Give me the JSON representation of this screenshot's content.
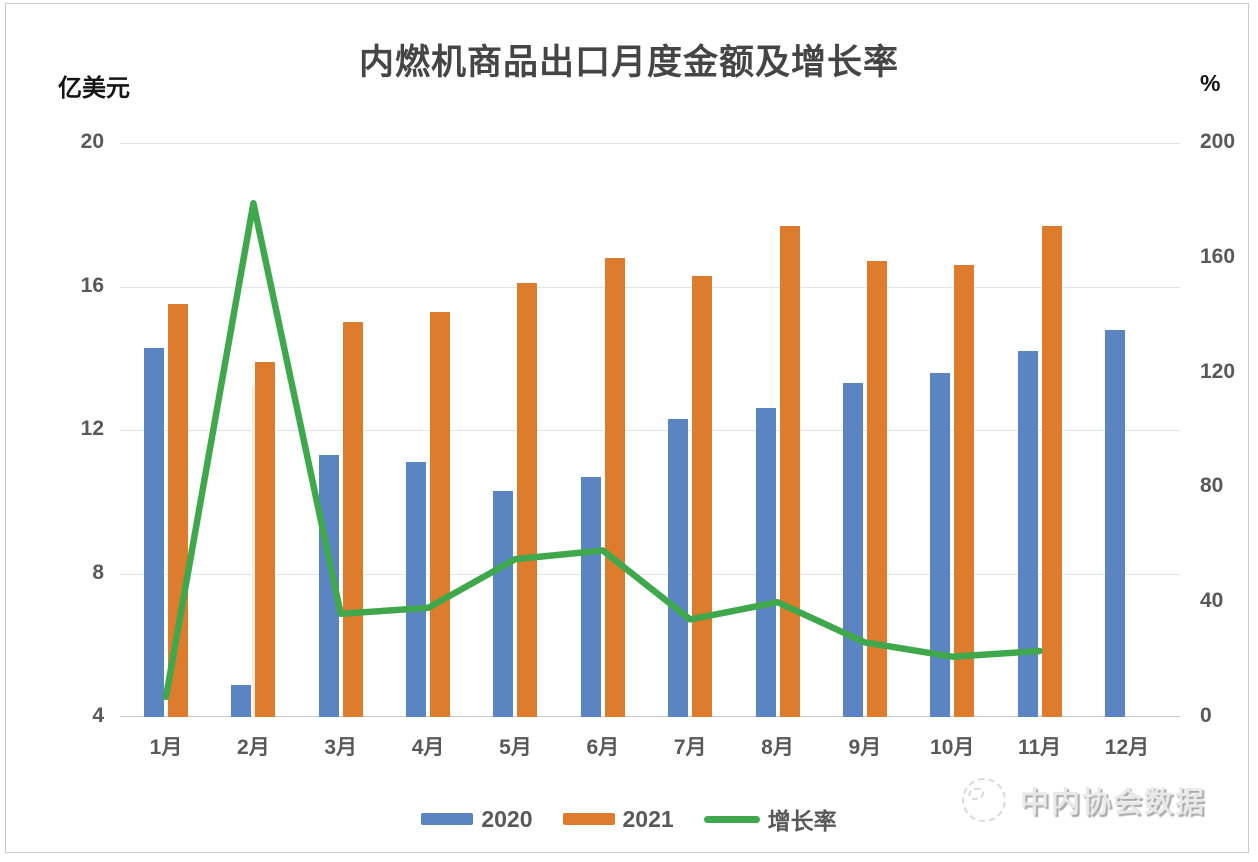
{
  "chart_data": {
    "type": "bar",
    "title": "内燃机商品出口月度金额及增长率",
    "categories": [
      "1月",
      "2月",
      "3月",
      "4月",
      "5月",
      "6月",
      "7月",
      "8月",
      "9月",
      "10月",
      "11月",
      "12月"
    ],
    "series": [
      {
        "name": "2020",
        "type": "bar",
        "axis": "left",
        "color": "#5B84C3",
        "values": [
          14.3,
          4.9,
          11.3,
          11.1,
          10.3,
          10.7,
          12.3,
          12.6,
          13.3,
          13.6,
          14.2,
          14.8
        ]
      },
      {
        "name": "2021",
        "type": "bar",
        "axis": "left",
        "color": "#DC7C2C",
        "values": [
          15.5,
          13.9,
          15.0,
          15.3,
          16.1,
          16.8,
          16.3,
          17.7,
          16.7,
          16.6,
          17.7,
          null
        ]
      },
      {
        "name": "增长率",
        "type": "line",
        "axis": "right",
        "color": "#3FA84C",
        "values": [
          7,
          179,
          36,
          38,
          55,
          58,
          34,
          40,
          26,
          21,
          23,
          null
        ]
      }
    ],
    "left_axis": {
      "label": "亿美元",
      "range": [
        4,
        20
      ],
      "ticks": [
        20,
        16,
        12,
        8,
        4
      ]
    },
    "right_axis": {
      "label": "%",
      "range": [
        0,
        200
      ],
      "ticks": [
        200,
        160,
        120,
        80,
        40,
        0
      ]
    },
    "legend": {
      "position": "bottom",
      "entries": [
        "2020",
        "2021",
        "增长率"
      ]
    },
    "grid": true
  },
  "watermark": {
    "text": "中内协会数据"
  }
}
